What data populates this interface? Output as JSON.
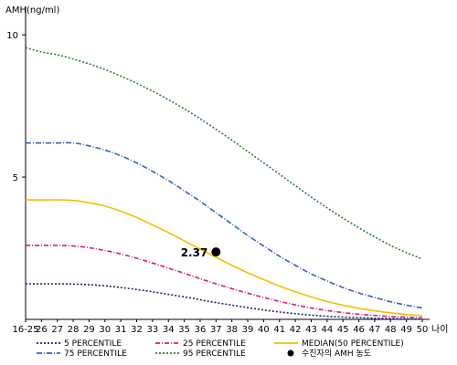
{
  "chart_data": {
    "type": "line",
    "ylabel": "AMH(ng/ml)",
    "xlabel": "나이",
    "ylim": [
      0,
      11
    ],
    "yticks": [
      5,
      10
    ],
    "categories": [
      "16-25",
      "26",
      "27",
      "28",
      "29",
      "30",
      "31",
      "32",
      "33",
      "34",
      "35",
      "36",
      "37",
      "38",
      "39",
      "40",
      "41",
      "42",
      "43",
      "44",
      "45",
      "46",
      "47",
      "48",
      "49",
      "50"
    ],
    "series": [
      {
        "name": "95 PERCENTILE",
        "color": "#2e7d32",
        "dash": "2,2",
        "values": [
          9.55,
          9.4,
          9.3,
          9.15,
          8.98,
          8.78,
          8.55,
          8.3,
          8.02,
          7.72,
          7.4,
          7.05,
          6.68,
          6.3,
          5.9,
          5.5,
          5.1,
          4.7,
          4.3,
          3.92,
          3.56,
          3.22,
          2.9,
          2.6,
          2.35,
          2.12
        ]
      },
      {
        "name": "75 PERCENTILE",
        "color": "#3a5fc8",
        "dash": "6,2,1,2",
        "values": [
          6.2,
          6.2,
          6.2,
          6.2,
          6.1,
          5.95,
          5.75,
          5.5,
          5.2,
          4.88,
          4.52,
          4.15,
          3.75,
          3.35,
          2.95,
          2.58,
          2.22,
          1.9,
          1.6,
          1.35,
          1.12,
          0.93,
          0.77,
          0.62,
          0.5,
          0.4
        ]
      },
      {
        "name": "MEDIAN(50 PERCENTILE)",
        "color": "#f2c200",
        "dash": "",
        "values": [
          4.2,
          4.2,
          4.2,
          4.18,
          4.1,
          3.98,
          3.8,
          3.58,
          3.32,
          3.05,
          2.76,
          2.47,
          2.18,
          1.9,
          1.64,
          1.4,
          1.17,
          0.97,
          0.79,
          0.63,
          0.5,
          0.39,
          0.3,
          0.23,
          0.17,
          0.13
        ]
      },
      {
        "name": "25 PERCENTILE",
        "color": "#e0157a",
        "dash": "5,2,1,2",
        "values": [
          2.6,
          2.6,
          2.6,
          2.58,
          2.52,
          2.42,
          2.3,
          2.15,
          1.98,
          1.8,
          1.62,
          1.43,
          1.25,
          1.08,
          0.92,
          0.77,
          0.63,
          0.51,
          0.4,
          0.31,
          0.24,
          0.18,
          0.14,
          0.1,
          0.08,
          0.06
        ]
      },
      {
        "name": "5 PERCENTILE",
        "color": "#1a237e",
        "dash": "2,2",
        "values": [
          1.25,
          1.25,
          1.25,
          1.24,
          1.22,
          1.18,
          1.12,
          1.05,
          0.97,
          0.88,
          0.79,
          0.69,
          0.59,
          0.5,
          0.41,
          0.33,
          0.26,
          0.2,
          0.15,
          0.11,
          0.08,
          0.06,
          0.04,
          0.03,
          0.02,
          0.01
        ]
      }
    ],
    "point": {
      "x": "37",
      "y": 2.37,
      "label": "2.37",
      "legend": "수진자의 AMH 농도",
      "color": "#000000"
    },
    "legend": {
      "placement": "bottom",
      "items": [
        {
          "label": "5 PERCENTILE",
          "color": "#1a237e",
          "dash": "2,2"
        },
        {
          "label": "25 PERCENTILE",
          "color": "#e0157a",
          "dash": "5,2,1,2"
        },
        {
          "label": "MEDIAN(50 PERCENTILE)",
          "color": "#f2c200",
          "dash": ""
        },
        {
          "label": "75 PERCENTILE",
          "color": "#3a5fc8",
          "dash": "6,2,1,2"
        },
        {
          "label": "95 PERCENTILE",
          "color": "#2e7d32",
          "dash": "2,2"
        },
        {
          "label": "수진자의 AMH 농도",
          "color": "#000000",
          "marker": "dot"
        }
      ]
    }
  }
}
